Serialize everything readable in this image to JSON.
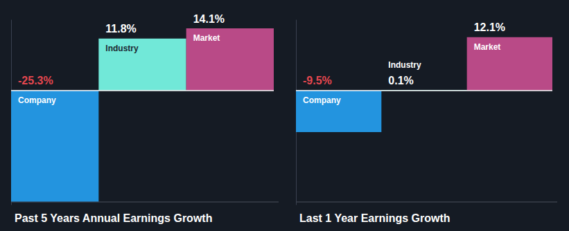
{
  "chart_data": [
    {
      "type": "bar",
      "title": "Past 5 Years Annual Earnings Growth",
      "categories": [
        "Company",
        "Industry",
        "Market"
      ],
      "values": [
        -25.3,
        11.8,
        14.1
      ],
      "value_labels": [
        "-25.3%",
        "11.8%",
        "14.1%"
      ],
      "colors": [
        "#2394df",
        "#71e8d8",
        "#b94a87"
      ],
      "ylim": [
        -26,
        16
      ],
      "yticks": [
        0
      ],
      "grid": false,
      "tick_labels": false,
      "data_labels": true
    },
    {
      "type": "bar",
      "title": "Last 1 Year Earnings Growth",
      "categories": [
        "Company",
        "Industry",
        "Market"
      ],
      "values": [
        -9.5,
        0.1,
        12.1
      ],
      "value_labels": [
        "-9.5%",
        "0.1%",
        "12.1%"
      ],
      "colors": [
        "#2394df",
        "#71e8d8",
        "#b94a87"
      ],
      "ylim": [
        -26,
        16
      ],
      "yticks": [
        0
      ],
      "grid": false,
      "tick_labels": false,
      "data_labels": true
    }
  ]
}
